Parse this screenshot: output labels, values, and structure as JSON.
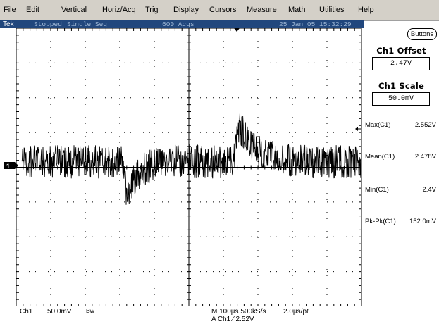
{
  "menu": [
    "File",
    "Edit",
    "Vertical",
    "Horiz/Acq",
    "Trig",
    "Display",
    "Cursors",
    "Measure",
    "Math",
    "Utilities",
    "Help"
  ],
  "status": {
    "logo": "Tek",
    "state": "Stopped",
    "mode": "Single Seq",
    "acqs": "600 Acqs",
    "datetime": "25 Jan 05 15:32:29"
  },
  "channel_marker": "1",
  "panel": {
    "buttons_label": "Buttons",
    "offset_title": "Ch1 Offset",
    "offset_value": "2.47V",
    "scale_title": "Ch1 Scale",
    "scale_value": "50.0mV"
  },
  "measurements": [
    {
      "label": "Max(C1)",
      "value": "2.552V"
    },
    {
      "label": "Mean(C1)",
      "value": "2.478V"
    },
    {
      "label": "Min(C1)",
      "value": "2.4V"
    },
    {
      "label": "Pk-Pk(C1)",
      "value": "152.0mV"
    }
  ],
  "bottom": {
    "ch": "Ch1",
    "scale": "50.0mV",
    "bw": "Bw",
    "timebase": "M 100µs 500kS/s",
    "pt": "2.0µs/pt",
    "trigger": "A  Ch1  ⁄  2.52V"
  },
  "colors": {
    "menubar": "#d4d0c8",
    "status_strip": "#21477d",
    "status_text": "#9fb8d6",
    "trace": "#000000",
    "graticule": "#000000"
  },
  "waveform": {
    "baseline_v": 2.478,
    "noise_pp_v": 0.03,
    "dip_min_v": 2.4,
    "peak_max_v": 2.552
  }
}
